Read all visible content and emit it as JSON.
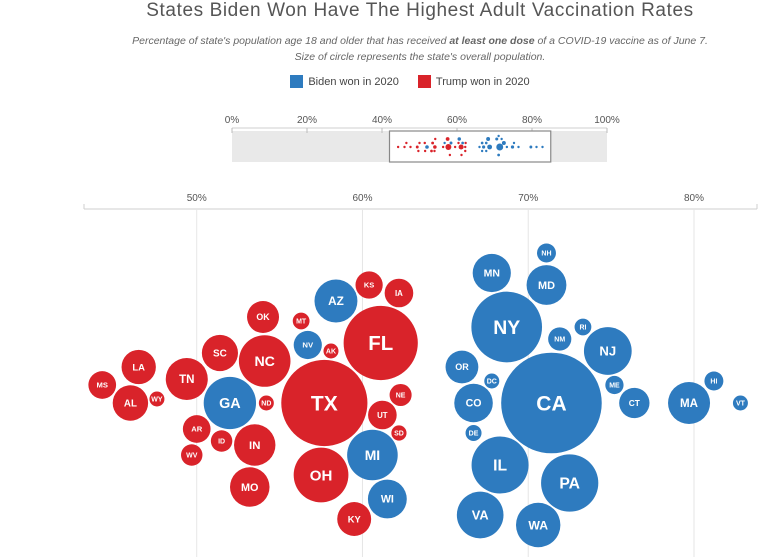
{
  "chart_data": {
    "type": "scatter",
    "title": "States Biden Won Have The Highest Adult Vaccination Rates",
    "subtitle_parts": [
      {
        "text": "Percentage of state's population age 18 and older that has received ",
        "bold": false
      },
      {
        "text": "at least one dose",
        "bold": true
      },
      {
        "text": " of a COVID-19 vaccine as of June 7. Size of circle represents the state's overall population.",
        "bold": false
      }
    ],
    "legend": [
      {
        "label": "Biden won in 2020",
        "color": "#2e7bbf"
      },
      {
        "label": "Trump won in 2020",
        "color": "#d9232a"
      }
    ],
    "overview_axis": {
      "ticks": [
        "0%",
        "20%",
        "40%",
        "60%",
        "80%",
        "100%"
      ],
      "range": [
        0,
        100
      ],
      "highlight_range": [
        42,
        85
      ]
    },
    "main_axis": {
      "ticks": [
        "50%",
        "60%",
        "70%",
        "80%"
      ],
      "tick_values": [
        50,
        60,
        70,
        80
      ],
      "range": [
        43.2,
        83.8
      ]
    },
    "series": [
      {
        "name": "Biden won in 2020",
        "color": "#2e7bbf",
        "points": [
          {
            "state": "GA",
            "value": 52.0,
            "pop": 10.7
          },
          {
            "state": "NV",
            "value": 56.7,
            "pop": 3.1
          },
          {
            "state": "AZ",
            "value": 58.4,
            "pop": 7.2
          },
          {
            "state": "WI",
            "value": 61.5,
            "pop": 5.9
          },
          {
            "state": "MI",
            "value": 60.6,
            "pop": 10.0
          },
          {
            "state": "OR",
            "value": 66.0,
            "pop": 4.2
          },
          {
            "state": "MN",
            "value": 67.8,
            "pop": 5.7
          },
          {
            "state": "WA",
            "value": 70.6,
            "pop": 7.7
          },
          {
            "state": "MD",
            "value": 71.1,
            "pop": 6.2
          },
          {
            "state": "RI",
            "value": 73.3,
            "pop": 1.1
          },
          {
            "state": "NY",
            "value": 68.7,
            "pop": 19.5
          },
          {
            "state": "PA",
            "value": 72.5,
            "pop": 12.8
          },
          {
            "state": "NH",
            "value": 71.1,
            "pop": 1.4
          },
          {
            "state": "NJ",
            "value": 74.8,
            "pop": 8.9
          },
          {
            "state": "DE",
            "value": 66.7,
            "pop": 1.0
          },
          {
            "state": "DC",
            "value": 67.8,
            "pop": 0.7
          },
          {
            "state": "CO",
            "value": 66.7,
            "pop": 5.8
          },
          {
            "state": "CA",
            "value": 71.4,
            "pop": 39.5
          },
          {
            "state": "VA",
            "value": 67.1,
            "pop": 8.5
          },
          {
            "state": "IL",
            "value": 68.3,
            "pop": 12.7
          },
          {
            "state": "NM",
            "value": 71.9,
            "pop": 2.1
          },
          {
            "state": "ME",
            "value": 75.2,
            "pop": 1.3
          },
          {
            "state": "CT",
            "value": 76.4,
            "pop": 3.6
          },
          {
            "state": "MA",
            "value": 79.7,
            "pop": 6.9
          },
          {
            "state": "HI",
            "value": 81.2,
            "pop": 1.4
          },
          {
            "state": "VT",
            "value": 82.8,
            "pop": 0.6
          }
        ]
      },
      {
        "name": "Trump won in 2020",
        "color": "#d9232a",
        "points": [
          {
            "state": "MS",
            "value": 44.3,
            "pop": 3.0
          },
          {
            "state": "AL",
            "value": 46.0,
            "pop": 4.9
          },
          {
            "state": "WY",
            "value": 47.6,
            "pop": 0.6
          },
          {
            "state": "LA",
            "value": 46.5,
            "pop": 4.6
          },
          {
            "state": "TN",
            "value": 49.4,
            "pop": 6.9
          },
          {
            "state": "WV",
            "value": 49.7,
            "pop": 1.8
          },
          {
            "state": "AR",
            "value": 50.0,
            "pop": 3.0
          },
          {
            "state": "ID",
            "value": 51.5,
            "pop": 1.8
          },
          {
            "state": "SC",
            "value": 51.4,
            "pop": 5.1
          },
          {
            "state": "OK",
            "value": 54.0,
            "pop": 4.0
          },
          {
            "state": "ND",
            "value": 54.2,
            "pop": 0.8
          },
          {
            "state": "NC",
            "value": 54.1,
            "pop": 10.4
          },
          {
            "state": "IN",
            "value": 53.5,
            "pop": 6.7
          },
          {
            "state": "MO",
            "value": 53.2,
            "pop": 6.1
          },
          {
            "state": "MT",
            "value": 56.3,
            "pop": 1.1
          },
          {
            "state": "OH",
            "value": 57.5,
            "pop": 11.7
          },
          {
            "state": "AK",
            "value": 58.1,
            "pop": 0.7
          },
          {
            "state": "TX",
            "value": 57.7,
            "pop": 29.0
          },
          {
            "state": "FL",
            "value": 61.1,
            "pop": 21.5
          },
          {
            "state": "KS",
            "value": 60.4,
            "pop": 2.9
          },
          {
            "state": "SD",
            "value": 62.2,
            "pop": 0.9
          },
          {
            "state": "KY",
            "value": 59.5,
            "pop": 4.5
          },
          {
            "state": "UT",
            "value": 61.2,
            "pop": 3.2
          },
          {
            "state": "IA",
            "value": 62.2,
            "pop": 3.2
          },
          {
            "state": "NE",
            "value": 62.3,
            "pop": 1.9
          }
        ]
      }
    ]
  }
}
